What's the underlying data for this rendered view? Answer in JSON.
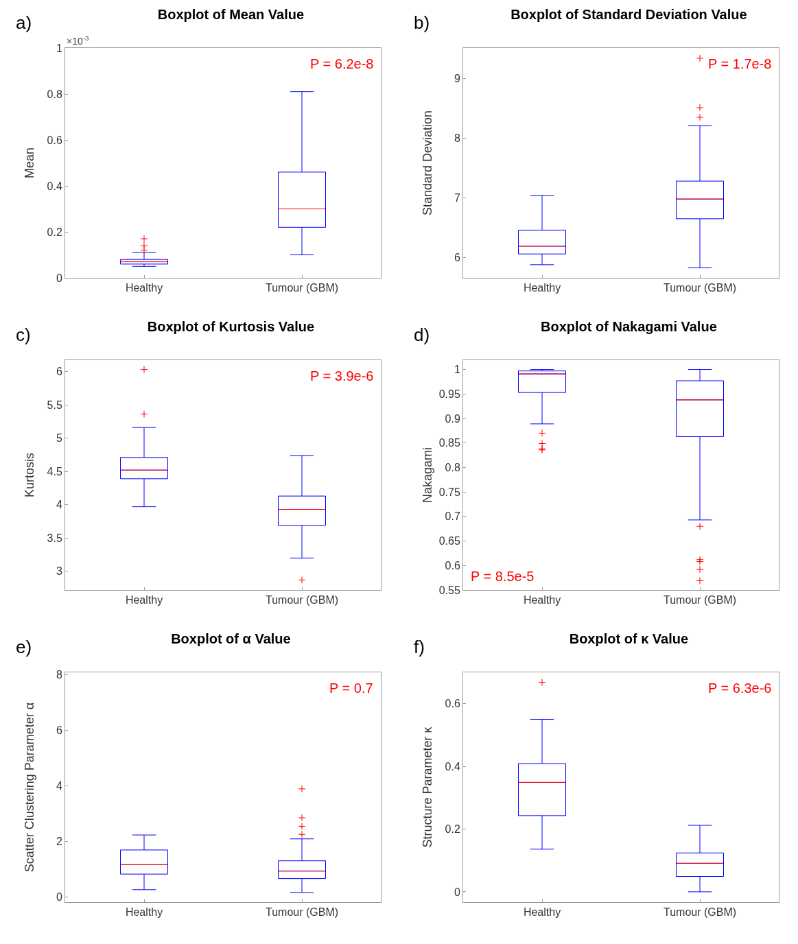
{
  "chart_data": [
    {
      "type": "box",
      "title": "Boxplot of Mean Value",
      "ylabel": "Mean",
      "categories": [
        "Healthy",
        "Tumour (GBM)"
      ],
      "annotations": [
        "a)",
        "×10$^{-3}$",
        "P = 6.2e-8"
      ],
      "ylim": [
        0,
        1
      ],
      "yticks": [
        0,
        0.2,
        0.4,
        0.6,
        0.8,
        1
      ],
      "grid": false,
      "marker": "cross",
      "series": [
        {
          "color": "#0000ff",
          "boxes": [
            {
              "low": 0.05,
              "q1": 0.06,
              "median": 0.07,
              "q3": 0.08,
              "high": 0.11,
              "outliers": [
                0.12,
                0.14,
                0.17
              ]
            },
            {
              "low": 0.1,
              "q1": 0.22,
              "median": 0.3,
              "q3": 0.46,
              "high": 0.81
            }
          ]
        }
      ]
    },
    {
      "type": "box",
      "title": "Boxplot of Standard Deviation Value",
      "ylabel": "Standard Deviation",
      "categories": [
        "Healthy",
        "Tumour (GBM)"
      ],
      "annotations": [
        "b)",
        "P = 1.7e-8"
      ],
      "ylim": [
        5.66,
        9.51
      ],
      "yticks": [
        6,
        7,
        8,
        9
      ],
      "grid": false,
      "marker": "cross",
      "series": [
        {
          "color": "#0000ff",
          "boxes": [
            {
              "low": 5.88,
              "q1": 6.06,
              "median": 6.19,
              "q3": 6.46,
              "high": 7.04
            },
            {
              "low": 5.83,
              "q1": 6.65,
              "median": 6.98,
              "q3": 7.28,
              "high": 8.21,
              "outliers": [
                8.35,
                8.51,
                9.34
              ]
            }
          ]
        }
      ]
    },
    {
      "type": "box",
      "title": "Boxplot of Kurtosis Value",
      "ylabel": "Kurtosis",
      "categories": [
        "Healthy",
        "Tumour (GBM)"
      ],
      "annotations": [
        "c)",
        "P = 3.9e-6"
      ],
      "ylim": [
        2.72,
        6.17
      ],
      "yticks": [
        3,
        3.5,
        4,
        4.5,
        5,
        5.5,
        6
      ],
      "grid": false,
      "marker": "cross",
      "series": [
        {
          "color": "#0000ff",
          "boxes": [
            {
              "low": 3.97,
              "q1": 4.39,
              "median": 4.52,
              "q3": 4.71,
              "high": 5.16,
              "outliers": [
                5.36,
                6.03
              ]
            },
            {
              "low": 3.2,
              "q1": 3.69,
              "median": 3.93,
              "q3": 4.13,
              "high": 4.74,
              "outliers": [
                2.87
              ]
            }
          ]
        }
      ]
    },
    {
      "type": "box",
      "title": "Boxplot of Nakagami Value",
      "ylabel": "Nakagami",
      "categories": [
        "Healthy",
        "Tumour (GBM)"
      ],
      "annotations": [
        "d)",
        "P = 8.5e-5"
      ],
      "ylim": [
        0.55,
        1.019
      ],
      "yticks": [
        0.55,
        0.6,
        0.65,
        0.7,
        0.75,
        0.8,
        0.85,
        0.9,
        0.95,
        1
      ],
      "grid": false,
      "marker": "cross",
      "series": [
        {
          "color": "#0000ff",
          "boxes": [
            {
              "low": 0.889,
              "q1": 0.953,
              "median": 0.991,
              "q3": 0.997,
              "high": 1.0,
              "outliers": [
                0.836,
                0.838,
                0.849,
                0.87
              ]
            },
            {
              "low": 0.693,
              "q1": 0.863,
              "median": 0.938,
              "q3": 0.977,
              "high": 1.0,
              "outliers": [
                0.569,
                0.592,
                0.608,
                0.612,
                0.68
              ]
            }
          ]
        }
      ]
    },
    {
      "type": "box",
      "title": "Boxplot of α Value",
      "ylabel": "Scatter Clustering Parameter α",
      "categories": [
        "Healthy",
        "Tumour (GBM)"
      ],
      "annotations": [
        "e)",
        "P = 0.7"
      ],
      "ylim": [
        -0.19,
        8.09
      ],
      "yticks": [
        0,
        2,
        4,
        6,
        8
      ],
      "grid": false,
      "marker": "cross",
      "series": [
        {
          "color": "#0000ff",
          "boxes": [
            {
              "low": 0.26,
              "q1": 0.82,
              "median": 1.16,
              "q3": 1.69,
              "high": 2.23
            },
            {
              "low": 0.16,
              "q1": 0.66,
              "median": 0.93,
              "q3": 1.3,
              "high": 2.09,
              "outliers": [
                2.25,
                2.54,
                2.85,
                3.89
              ]
            }
          ]
        }
      ]
    },
    {
      "type": "box",
      "title": "Boxplot of κ Value",
      "ylabel": "Structure Parameter κ",
      "categories": [
        "Healthy",
        "Tumour (GBM)"
      ],
      "annotations": [
        "f)",
        "P = 6.3e-6"
      ],
      "ylim": [
        -0.033,
        0.7
      ],
      "yticks": [
        0,
        0.2,
        0.4,
        0.6
      ],
      "grid": false,
      "marker": "cross",
      "series": [
        {
          "color": "#0000ff",
          "boxes": [
            {
              "low": 0.136,
              "q1": 0.243,
              "median": 0.349,
              "q3": 0.409,
              "high": 0.55,
              "outliers": [
                0.668
              ]
            },
            {
              "low": 0,
              "q1": 0.049,
              "median": 0.091,
              "q3": 0.124,
              "high": 0.212
            }
          ]
        }
      ]
    }
  ]
}
